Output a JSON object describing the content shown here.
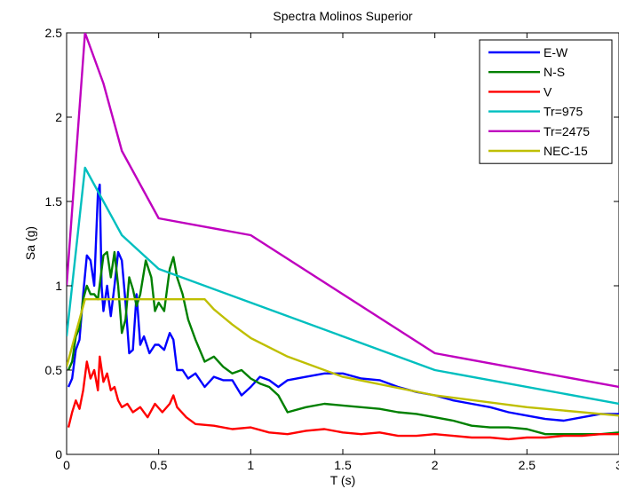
{
  "chart_data": {
    "type": "line",
    "title": "Spectra Molinos Superior",
    "xlabel": "T (s)",
    "ylabel": "Sa (g)",
    "xlim": [
      0,
      3
    ],
    "ylim": [
      0,
      2.5
    ],
    "xticks": [
      0,
      0.5,
      1,
      1.5,
      2,
      2.5,
      3
    ],
    "xtick_labels": [
      "0",
      "0.5",
      "1",
      "1.5",
      "2",
      "2.5",
      "3"
    ],
    "yticks": [
      0,
      0.5,
      1,
      1.5,
      2,
      2.5
    ],
    "ytick_labels": [
      "0",
      "0.5",
      "1",
      "1.5",
      "2",
      "2.5"
    ],
    "grid": false,
    "legend_position": "top-right",
    "series": [
      {
        "name": "E-W",
        "color": "#0000ff",
        "x": [
          0.01,
          0.03,
          0.05,
          0.07,
          0.09,
          0.11,
          0.13,
          0.15,
          0.17,
          0.18,
          0.19,
          0.2,
          0.22,
          0.24,
          0.26,
          0.28,
          0.3,
          0.32,
          0.34,
          0.36,
          0.38,
          0.4,
          0.42,
          0.45,
          0.48,
          0.5,
          0.53,
          0.56,
          0.58,
          0.6,
          0.63,
          0.66,
          0.7,
          0.75,
          0.8,
          0.85,
          0.9,
          0.95,
          1.0,
          1.05,
          1.1,
          1.15,
          1.2,
          1.3,
          1.4,
          1.5,
          1.6,
          1.7,
          1.8,
          1.9,
          2.0,
          2.1,
          2.2,
          2.3,
          2.4,
          2.5,
          2.6,
          2.7,
          2.8,
          2.9,
          3.0
        ],
        "values": [
          0.4,
          0.45,
          0.62,
          0.68,
          0.95,
          1.18,
          1.15,
          1.0,
          1.55,
          1.6,
          1.0,
          0.85,
          1.0,
          0.82,
          1.0,
          1.2,
          1.15,
          0.9,
          0.6,
          0.62,
          0.95,
          0.65,
          0.7,
          0.6,
          0.65,
          0.65,
          0.62,
          0.72,
          0.68,
          0.5,
          0.5,
          0.45,
          0.48,
          0.4,
          0.46,
          0.44,
          0.44,
          0.35,
          0.4,
          0.46,
          0.44,
          0.4,
          0.44,
          0.46,
          0.48,
          0.48,
          0.45,
          0.44,
          0.4,
          0.37,
          0.35,
          0.32,
          0.3,
          0.28,
          0.25,
          0.23,
          0.21,
          0.2,
          0.22,
          0.24,
          0.24
        ]
      },
      {
        "name": "N-S",
        "color": "#008000",
        "x": [
          0.01,
          0.03,
          0.05,
          0.07,
          0.09,
          0.11,
          0.13,
          0.15,
          0.17,
          0.2,
          0.22,
          0.24,
          0.26,
          0.28,
          0.3,
          0.32,
          0.34,
          0.36,
          0.38,
          0.4,
          0.43,
          0.46,
          0.48,
          0.5,
          0.53,
          0.56,
          0.58,
          0.6,
          0.63,
          0.66,
          0.7,
          0.75,
          0.8,
          0.85,
          0.9,
          0.95,
          1.0,
          1.05,
          1.1,
          1.15,
          1.2,
          1.3,
          1.4,
          1.5,
          1.6,
          1.7,
          1.8,
          1.9,
          2.0,
          2.1,
          2.2,
          2.3,
          2.4,
          2.5,
          2.6,
          2.7,
          2.8,
          2.9,
          3.0
        ],
        "values": [
          0.5,
          0.55,
          0.7,
          0.75,
          0.92,
          1.0,
          0.95,
          0.95,
          0.92,
          1.18,
          1.2,
          1.05,
          1.2,
          1.0,
          0.72,
          0.8,
          1.05,
          0.98,
          0.88,
          0.95,
          1.15,
          1.05,
          0.85,
          0.9,
          0.85,
          1.1,
          1.17,
          1.05,
          0.95,
          0.8,
          0.68,
          0.55,
          0.58,
          0.52,
          0.48,
          0.5,
          0.45,
          0.42,
          0.4,
          0.35,
          0.25,
          0.28,
          0.3,
          0.29,
          0.28,
          0.27,
          0.25,
          0.24,
          0.22,
          0.2,
          0.17,
          0.16,
          0.16,
          0.15,
          0.12,
          0.12,
          0.12,
          0.12,
          0.13
        ]
      },
      {
        "name": "V",
        "color": "#ff0000",
        "x": [
          0.01,
          0.03,
          0.05,
          0.07,
          0.09,
          0.11,
          0.13,
          0.15,
          0.17,
          0.18,
          0.2,
          0.22,
          0.24,
          0.26,
          0.28,
          0.3,
          0.33,
          0.36,
          0.4,
          0.44,
          0.48,
          0.52,
          0.56,
          0.58,
          0.6,
          0.65,
          0.7,
          0.8,
          0.9,
          1.0,
          1.1,
          1.2,
          1.3,
          1.4,
          1.5,
          1.6,
          1.7,
          1.8,
          1.9,
          2.0,
          2.1,
          2.2,
          2.3,
          2.4,
          2.5,
          2.6,
          2.7,
          2.8,
          2.9,
          3.0
        ],
        "values": [
          0.16,
          0.25,
          0.32,
          0.27,
          0.38,
          0.55,
          0.45,
          0.5,
          0.38,
          0.58,
          0.43,
          0.48,
          0.38,
          0.4,
          0.32,
          0.28,
          0.3,
          0.25,
          0.28,
          0.22,
          0.3,
          0.25,
          0.3,
          0.35,
          0.28,
          0.22,
          0.18,
          0.17,
          0.15,
          0.16,
          0.13,
          0.12,
          0.14,
          0.15,
          0.13,
          0.12,
          0.13,
          0.11,
          0.11,
          0.12,
          0.11,
          0.1,
          0.1,
          0.09,
          0.1,
          0.1,
          0.11,
          0.11,
          0.12,
          0.12
        ]
      },
      {
        "name": "Tr=975",
        "color": "#00bfbf",
        "x": [
          0,
          0.1,
          0.3,
          0.5,
          1.0,
          2.0,
          3.0
        ],
        "values": [
          0.7,
          1.7,
          1.3,
          1.1,
          0.9,
          0.5,
          0.3
        ]
      },
      {
        "name": "Tr=2475",
        "color": "#bf00bf",
        "x": [
          0,
          0.1,
          0.2,
          0.3,
          0.5,
          1.0,
          2.0,
          3.0
        ],
        "values": [
          1.0,
          2.5,
          2.2,
          1.8,
          1.4,
          1.3,
          0.6,
          0.4
        ]
      },
      {
        "name": "NEC-15",
        "color": "#bfbf00",
        "x": [
          0,
          0.02,
          0.05,
          0.1,
          0.12,
          0.2,
          0.3,
          0.5,
          0.6,
          0.75,
          0.8,
          0.9,
          1.0,
          1.2,
          1.5,
          2.0,
          2.5,
          3.0
        ],
        "values": [
          0.52,
          0.6,
          0.72,
          0.92,
          0.92,
          0.92,
          0.92,
          0.92,
          0.92,
          0.92,
          0.86,
          0.77,
          0.69,
          0.58,
          0.46,
          0.35,
          0.28,
          0.23
        ]
      }
    ]
  }
}
